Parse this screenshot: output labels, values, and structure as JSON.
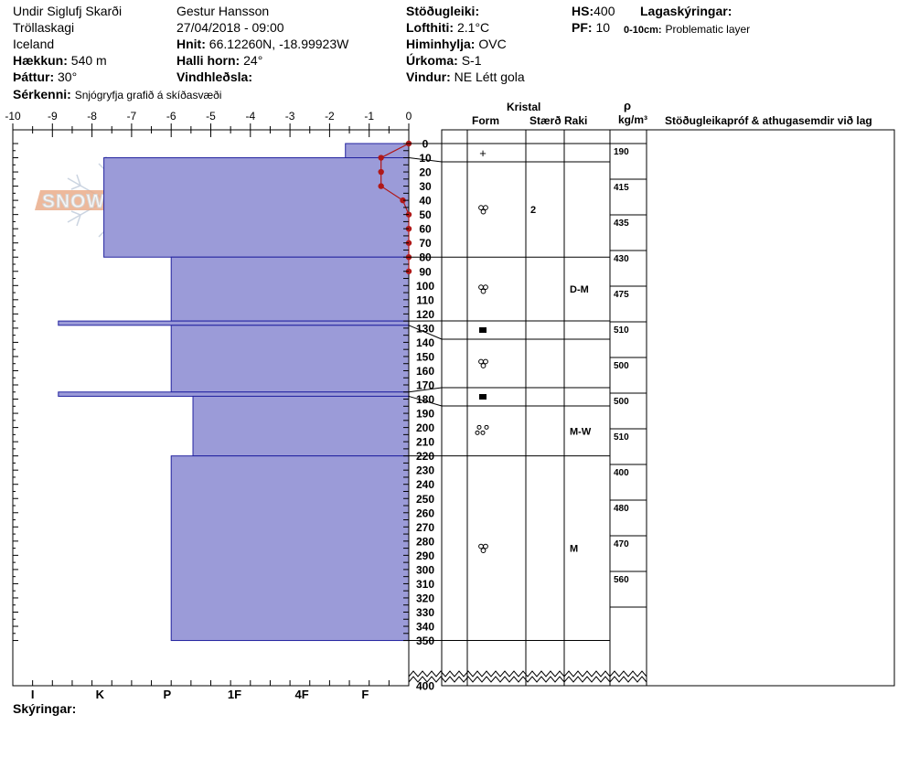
{
  "header": {
    "location": "Undir Siglufj Skarði",
    "region": "Tröllaskagi",
    "country": "Iceland",
    "elevation_label": "Hækkun:",
    "elevation_value": "540 m",
    "aspect_label": "Þáttur:",
    "aspect_value": "30°",
    "observer": "Gestur Hansson",
    "datetime": "27/04/2018 - 09:00",
    "coords_label": "Hnit:",
    "coords_value": "66.12260N, -18.99923W",
    "slope_label": "Halli horn:",
    "slope_value": "24°",
    "wind_loading_label": "Vindhleðsla:",
    "stability_label": "Stöðugleiki:",
    "air_temp_label": "Lofthiti:",
    "air_temp_value": "2.1°C",
    "sky_label": "Himinhylja:",
    "sky_value": "OVC",
    "precip_label": "Úrkoma:",
    "precip_value": "S-1",
    "wind_label": "Vindur:",
    "wind_value": "NE Létt gola",
    "hs_label": "HS:",
    "hs_value": "400",
    "pf_label": "PF:",
    "pf_value": "10",
    "layer_notes_label": "Lagaskýringar:",
    "layer_note_range": "0-10cm:",
    "layer_note_text": "Problematic layer",
    "special_label": "Sérkenni:",
    "special_value": "Snjógryfja grafið á skíðasvæði"
  },
  "columns": {
    "crystal": "Kristal",
    "form": "Form",
    "size": "Stærð",
    "moisture": "Raki",
    "rho": "ρ",
    "density_unit": "kg/m³",
    "stability_notes": "Stöðugleikapróf & athugasemdir við lag"
  },
  "legend_label": "Skýringar:",
  "logo_text": "SNOWPILOT",
  "chart_data": {
    "type": "snow-profile",
    "temp_axis": {
      "min": -10,
      "max": 0,
      "ticks": [
        -10,
        -9,
        -8,
        -7,
        -6,
        -5,
        -4,
        -3,
        -2,
        -1,
        0
      ]
    },
    "depth_axis": {
      "min": 0,
      "max": 400,
      "labels": [
        0,
        10,
        20,
        30,
        40,
        50,
        60,
        70,
        80,
        90,
        100,
        110,
        120,
        130,
        140,
        150,
        160,
        170,
        180,
        190,
        200,
        210,
        220,
        230,
        240,
        250,
        260,
        270,
        280,
        290,
        300,
        310,
        320,
        330,
        340,
        350,
        400
      ]
    },
    "hardness_axis": {
      "labels": [
        "I",
        "K",
        "P",
        "1F",
        "4F",
        "F"
      ],
      "label_temps": [
        -9.5,
        -7.8,
        -6.1,
        -4.4,
        -2.7,
        -1.1
      ]
    },
    "layers": [
      {
        "top": 0,
        "bottom": 10,
        "hardness_temp": -1.6,
        "form": "+",
        "size": "",
        "moisture": ""
      },
      {
        "top": 10,
        "bottom": 80,
        "hardness_temp": -7.7,
        "form": "ice-grain",
        "size": "2",
        "moisture": ""
      },
      {
        "top": 80,
        "bottom": 125,
        "hardness_temp": -6.0,
        "form": "ice-grain",
        "size": "",
        "moisture": "D-M"
      },
      {
        "top": 125,
        "bottom": 128,
        "hardness_temp": -8.85,
        "form": "crust",
        "size": "",
        "moisture": ""
      },
      {
        "top": 128,
        "bottom": 175,
        "hardness_temp": -6.0,
        "form": "ice-grain",
        "size": "",
        "moisture": ""
      },
      {
        "top": 175,
        "bottom": 178,
        "hardness_temp": -8.85,
        "form": "crust",
        "size": "",
        "moisture": ""
      },
      {
        "top": 178,
        "bottom": 220,
        "hardness_temp": -5.45,
        "form": "clustered",
        "size": "",
        "moisture": "M-W"
      },
      {
        "top": 220,
        "bottom": 350,
        "hardness_temp": -6.0,
        "form": "ice-grain",
        "size": "",
        "moisture": "M"
      }
    ],
    "temperature_profile": [
      {
        "depth": 0,
        "temp": 0
      },
      {
        "depth": 10,
        "temp": -0.7
      },
      {
        "depth": 20,
        "temp": -0.7
      },
      {
        "depth": 30,
        "temp": -0.7
      },
      {
        "depth": 40,
        "temp": -0.15
      },
      {
        "depth": 50,
        "temp": 0
      },
      {
        "depth": 60,
        "temp": 0
      },
      {
        "depth": 70,
        "temp": 0
      },
      {
        "depth": 80,
        "temp": 0
      },
      {
        "depth": 90,
        "temp": 0
      }
    ],
    "density": [
      {
        "value": "190",
        "depth": 5
      },
      {
        "value": "415",
        "depth": 30
      },
      {
        "value": "435",
        "depth": 55
      },
      {
        "value": "430",
        "depth": 80
      },
      {
        "value": "475",
        "depth": 105
      },
      {
        "value": "510",
        "depth": 130
      },
      {
        "value": "500",
        "depth": 155
      },
      {
        "value": "500",
        "depth": 180
      },
      {
        "value": "510",
        "depth": 205
      },
      {
        "value": "400",
        "depth": 230
      },
      {
        "value": "480",
        "depth": 255
      },
      {
        "value": "470",
        "depth": 280
      },
      {
        "value": "560",
        "depth": 305
      }
    ],
    "colors": {
      "layer_fill": "#9b9bd8",
      "layer_stroke": "#2323a0",
      "temp_line": "#b01818"
    }
  }
}
